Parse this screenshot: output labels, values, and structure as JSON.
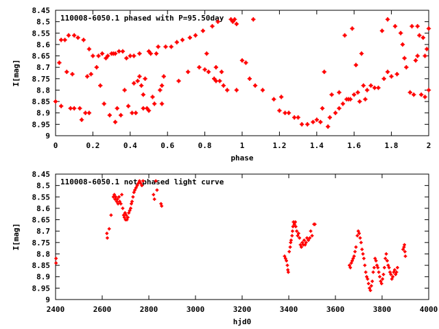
{
  "chart_data": [
    {
      "type": "scatter",
      "title": "110008-6050.1 phased with P=95.50day",
      "xlabel": "phase",
      "ylabel": "I[mag]",
      "xlim": [
        0,
        2
      ],
      "ylim": [
        8.45,
        9
      ],
      "y_inverted": true,
      "xticks": [
        "0",
        "0.2",
        "0.4",
        "0.6",
        "0.8",
        "1",
        "1.2",
        "1.4",
        "1.6",
        "1.8",
        "2"
      ],
      "yticks": [
        "8.45",
        "8.5",
        "8.55",
        "8.6",
        "8.65",
        "8.7",
        "8.75",
        "8.8",
        "8.85",
        "8.9",
        "8.95",
        "9"
      ],
      "marker_color": "#ff0000",
      "grid": false,
      "points": [
        [
          0.0,
          8.85
        ],
        [
          0.02,
          8.68
        ],
        [
          0.03,
          8.58
        ],
        [
          0.03,
          8.87
        ],
        [
          0.05,
          8.58
        ],
        [
          0.06,
          8.72
        ],
        [
          0.07,
          8.56
        ],
        [
          0.08,
          8.88
        ],
        [
          0.09,
          8.73
        ],
        [
          0.1,
          8.56
        ],
        [
          0.1,
          8.88
        ],
        [
          0.12,
          8.57
        ],
        [
          0.13,
          8.88
        ],
        [
          0.14,
          8.93
        ],
        [
          0.15,
          8.58
        ],
        [
          0.16,
          8.9
        ],
        [
          0.17,
          8.74
        ],
        [
          0.18,
          8.9
        ],
        [
          0.18,
          8.62
        ],
        [
          0.19,
          8.73
        ],
        [
          0.2,
          8.65
        ],
        [
          0.22,
          8.7
        ],
        [
          0.23,
          8.65
        ],
        [
          0.24,
          8.78
        ],
        [
          0.25,
          8.64
        ],
        [
          0.26,
          8.86
        ],
        [
          0.27,
          8.66
        ],
        [
          0.28,
          8.65
        ],
        [
          0.29,
          8.91
        ],
        [
          0.3,
          8.64
        ],
        [
          0.31,
          8.64
        ],
        [
          0.32,
          8.94
        ],
        [
          0.32,
          8.64
        ],
        [
          0.33,
          8.88
        ],
        [
          0.34,
          8.63
        ],
        [
          0.35,
          8.91
        ],
        [
          0.36,
          8.63
        ],
        [
          0.37,
          8.8
        ],
        [
          0.38,
          8.66
        ],
        [
          0.39,
          8.87
        ],
        [
          0.4,
          8.65
        ],
        [
          0.41,
          8.9
        ],
        [
          0.42,
          8.77
        ],
        [
          0.42,
          8.65
        ],
        [
          0.43,
          8.9
        ],
        [
          0.44,
          8.76
        ],
        [
          0.45,
          8.64
        ],
        [
          0.45,
          8.74
        ],
        [
          0.46,
          8.78
        ],
        [
          0.47,
          8.82
        ],
        [
          0.47,
          8.88
        ],
        [
          0.48,
          8.75
        ],
        [
          0.49,
          8.88
        ],
        [
          0.5,
          8.89
        ],
        [
          0.5,
          8.63
        ],
        [
          0.51,
          8.64
        ],
        [
          0.52,
          8.83
        ],
        [
          0.53,
          8.86
        ],
        [
          0.54,
          8.64
        ],
        [
          0.55,
          8.61
        ],
        [
          0.56,
          8.8
        ],
        [
          0.57,
          8.86
        ],
        [
          0.57,
          8.78
        ],
        [
          0.58,
          8.74
        ],
        [
          0.59,
          8.61
        ],
        [
          0.62,
          8.61
        ],
        [
          0.65,
          8.59
        ],
        [
          0.66,
          8.76
        ],
        [
          0.68,
          8.58
        ],
        [
          0.71,
          8.72
        ],
        [
          0.72,
          8.57
        ],
        [
          0.75,
          8.56
        ],
        [
          0.77,
          8.7
        ],
        [
          0.79,
          8.54
        ],
        [
          0.8,
          8.71
        ],
        [
          0.81,
          8.64
        ],
        [
          0.82,
          8.72
        ],
        [
          0.84,
          8.52
        ],
        [
          0.85,
          8.75
        ],
        [
          0.86,
          8.76
        ],
        [
          0.86,
          8.7
        ],
        [
          0.87,
          8.5
        ],
        [
          0.88,
          8.76
        ],
        [
          0.89,
          8.72
        ],
        [
          0.9,
          8.78
        ],
        [
          0.92,
          8.8
        ],
        [
          0.94,
          8.49
        ],
        [
          0.95,
          8.5
        ],
        [
          0.96,
          8.49
        ],
        [
          0.97,
          8.8
        ],
        [
          0.97,
          8.51
        ],
        [
          1.0,
          8.67
        ],
        [
          1.02,
          8.68
        ],
        [
          1.04,
          8.75
        ],
        [
          1.06,
          8.49
        ],
        [
          1.07,
          8.78
        ],
        [
          1.11,
          8.8
        ],
        [
          1.17,
          8.84
        ],
        [
          1.2,
          8.89
        ],
        [
          1.21,
          8.83
        ],
        [
          1.23,
          8.9
        ],
        [
          1.25,
          8.9
        ],
        [
          1.28,
          8.92
        ],
        [
          1.3,
          8.92
        ],
        [
          1.32,
          8.95
        ],
        [
          1.35,
          8.95
        ],
        [
          1.38,
          8.94
        ],
        [
          1.4,
          8.93
        ],
        [
          1.42,
          8.94
        ],
        [
          1.43,
          8.88
        ],
        [
          1.44,
          8.72
        ],
        [
          1.46,
          8.96
        ],
        [
          1.47,
          8.92
        ],
        [
          1.48,
          8.82
        ],
        [
          1.5,
          8.9
        ],
        [
          1.52,
          8.81
        ],
        [
          1.52,
          8.88
        ],
        [
          1.54,
          8.86
        ],
        [
          1.55,
          8.56
        ],
        [
          1.56,
          8.84
        ],
        [
          1.57,
          8.84
        ],
        [
          1.58,
          8.84
        ],
        [
          1.59,
          8.53
        ],
        [
          1.6,
          8.82
        ],
        [
          1.61,
          8.69
        ],
        [
          1.62,
          8.81
        ],
        [
          1.63,
          8.85
        ],
        [
          1.64,
          8.64
        ],
        [
          1.65,
          8.78
        ],
        [
          1.66,
          8.84
        ],
        [
          1.67,
          8.8
        ],
        [
          1.69,
          8.78
        ],
        [
          1.71,
          8.79
        ],
        [
          1.73,
          8.79
        ],
        [
          1.75,
          8.54
        ],
        [
          1.76,
          8.75
        ],
        [
          1.78,
          8.49
        ],
        [
          1.78,
          8.72
        ],
        [
          1.8,
          8.74
        ],
        [
          1.82,
          8.52
        ],
        [
          1.83,
          8.73
        ],
        [
          1.85,
          8.55
        ],
        [
          1.86,
          8.6
        ],
        [
          1.87,
          8.66
        ],
        [
          1.88,
          8.7
        ],
        [
          1.9,
          8.81
        ],
        [
          1.91,
          8.52
        ],
        [
          1.92,
          8.82
        ],
        [
          1.93,
          8.67
        ],
        [
          1.94,
          8.52
        ],
        [
          1.94,
          8.65
        ],
        [
          1.95,
          8.56
        ],
        [
          1.96,
          8.82
        ],
        [
          1.97,
          8.57
        ],
        [
          1.98,
          8.83
        ],
        [
          1.98,
          8.65
        ],
        [
          1.99,
          8.62
        ],
        [
          2.0,
          8.8
        ],
        [
          2.0,
          8.53
        ]
      ]
    },
    {
      "type": "scatter",
      "title": "110008-6050.1 not phased light curve",
      "xlabel": "hjd0",
      "ylabel": "I[mag]",
      "xlim": [
        2400,
        4000
      ],
      "ylim": [
        8.45,
        9
      ],
      "y_inverted": true,
      "xticks": [
        "2400",
        "2600",
        "2800",
        "3000",
        "3200",
        "3400",
        "3600",
        "3800",
        "4000"
      ],
      "yticks": [
        "8.45",
        "8.5",
        "8.55",
        "8.6",
        "8.65",
        "8.7",
        "8.75",
        "8.8",
        "8.85",
        "8.9",
        "8.95",
        "9"
      ],
      "marker_color": "#ff0000",
      "grid": false,
      "points": [
        [
          2402,
          8.82
        ],
        [
          2402,
          8.84
        ],
        [
          2620,
          8.71
        ],
        [
          2622,
          8.73
        ],
        [
          2630,
          8.69
        ],
        [
          2638,
          8.63
        ],
        [
          2648,
          8.55
        ],
        [
          2652,
          8.54
        ],
        [
          2655,
          8.56
        ],
        [
          2658,
          8.55
        ],
        [
          2662,
          8.57
        ],
        [
          2665,
          8.56
        ],
        [
          2668,
          8.58
        ],
        [
          2672,
          8.55
        ],
        [
          2675,
          8.57
        ],
        [
          2680,
          8.58
        ],
        [
          2684,
          8.54
        ],
        [
          2688,
          8.6
        ],
        [
          2692,
          8.63
        ],
        [
          2695,
          8.64
        ],
        [
          2698,
          8.62
        ],
        [
          2700,
          8.65
        ],
        [
          2703,
          8.63
        ],
        [
          2706,
          8.65
        ],
        [
          2710,
          8.64
        ],
        [
          2714,
          8.62
        ],
        [
          2718,
          8.61
        ],
        [
          2722,
          8.6
        ],
        [
          2725,
          8.58
        ],
        [
          2728,
          8.57
        ],
        [
          2732,
          8.55
        ],
        [
          2736,
          8.53
        ],
        [
          2740,
          8.52
        ],
        [
          2745,
          8.51
        ],
        [
          2750,
          8.5
        ],
        [
          2755,
          8.49
        ],
        [
          2760,
          8.48
        ],
        [
          2765,
          8.49
        ],
        [
          2770,
          8.5
        ],
        [
          2775,
          8.48
        ],
        [
          2820,
          8.54
        ],
        [
          2824,
          8.56
        ],
        [
          2830,
          8.48
        ],
        [
          2835,
          8.52
        ],
        [
          2852,
          8.58
        ],
        [
          2855,
          8.59
        ],
        [
          3382,
          8.81
        ],
        [
          3386,
          8.82
        ],
        [
          3390,
          8.83
        ],
        [
          3394,
          8.85
        ],
        [
          3396,
          8.87
        ],
        [
          3398,
          8.88
        ],
        [
          3402,
          8.79
        ],
        [
          3406,
          8.77
        ],
        [
          3408,
          8.75
        ],
        [
          3410,
          8.74
        ],
        [
          3414,
          8.72
        ],
        [
          3416,
          8.7
        ],
        [
          3418,
          8.68
        ],
        [
          3420,
          8.66
        ],
        [
          3424,
          8.67
        ],
        [
          3428,
          8.66
        ],
        [
          3430,
          8.68
        ],
        [
          3434,
          8.7
        ],
        [
          3438,
          8.72
        ],
        [
          3442,
          8.71
        ],
        [
          3446,
          8.73
        ],
        [
          3450,
          8.76
        ],
        [
          3454,
          8.77
        ],
        [
          3458,
          8.75
        ],
        [
          3462,
          8.76
        ],
        [
          3466,
          8.74
        ],
        [
          3470,
          8.76
        ],
        [
          3474,
          8.75
        ],
        [
          3478,
          8.73
        ],
        [
          3484,
          8.74
        ],
        [
          3490,
          8.73
        ],
        [
          3494,
          8.7
        ],
        [
          3500,
          8.72
        ],
        [
          3508,
          8.67
        ],
        [
          3512,
          8.67
        ],
        [
          3660,
          8.85
        ],
        [
          3664,
          8.86
        ],
        [
          3668,
          8.84
        ],
        [
          3672,
          8.83
        ],
        [
          3676,
          8.82
        ],
        [
          3680,
          8.81
        ],
        [
          3684,
          8.79
        ],
        [
          3688,
          8.77
        ],
        [
          3694,
          8.72
        ],
        [
          3698,
          8.7
        ],
        [
          3702,
          8.71
        ],
        [
          3706,
          8.73
        ],
        [
          3710,
          8.75
        ],
        [
          3714,
          8.78
        ],
        [
          3718,
          8.8
        ],
        [
          3722,
          8.82
        ],
        [
          3726,
          8.85
        ],
        [
          3730,
          8.88
        ],
        [
          3734,
          8.9
        ],
        [
          3738,
          8.91
        ],
        [
          3742,
          8.93
        ],
        [
          3746,
          8.95
        ],
        [
          3750,
          8.96
        ],
        [
          3754,
          8.94
        ],
        [
          3758,
          8.92
        ],
        [
          3762,
          8.88
        ],
        [
          3766,
          8.86
        ],
        [
          3770,
          8.82
        ],
        [
          3774,
          8.83
        ],
        [
          3778,
          8.85
        ],
        [
          3782,
          8.86
        ],
        [
          3786,
          8.88
        ],
        [
          3790,
          8.9
        ],
        [
          3794,
          8.92
        ],
        [
          3798,
          8.93
        ],
        [
          3802,
          8.91
        ],
        [
          3806,
          8.89
        ],
        [
          3810,
          8.86
        ],
        [
          3814,
          8.82
        ],
        [
          3818,
          8.8
        ],
        [
          3822,
          8.83
        ],
        [
          3826,
          8.85
        ],
        [
          3830,
          8.86
        ],
        [
          3834,
          8.88
        ],
        [
          3838,
          8.89
        ],
        [
          3842,
          8.91
        ],
        [
          3846,
          8.9
        ],
        [
          3850,
          8.88
        ],
        [
          3854,
          8.87
        ],
        [
          3858,
          8.89
        ],
        [
          3862,
          8.88
        ],
        [
          3866,
          8.86
        ],
        [
          3890,
          8.78
        ],
        [
          3894,
          8.77
        ],
        [
          3896,
          8.76
        ],
        [
          3898,
          8.79
        ],
        [
          3900,
          8.81
        ]
      ]
    }
  ]
}
